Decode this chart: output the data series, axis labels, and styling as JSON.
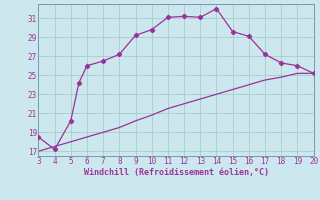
{
  "x_upper": [
    3,
    4,
    5,
    5.5,
    6,
    7,
    8,
    9,
    10,
    11,
    12,
    13,
    14,
    15,
    16,
    17,
    18,
    19,
    20
  ],
  "y_upper": [
    18.5,
    17.2,
    20.2,
    24.2,
    26.0,
    26.5,
    27.2,
    29.2,
    29.8,
    31.1,
    31.2,
    31.1,
    32.0,
    29.6,
    29.1,
    27.2,
    26.3,
    26.0,
    25.2
  ],
  "x_lower": [
    3,
    4,
    5,
    6,
    7,
    8,
    9,
    10,
    11,
    12,
    13,
    14,
    15,
    16,
    17,
    18,
    19,
    20
  ],
  "y_lower": [
    17.0,
    17.5,
    18.0,
    18.5,
    19.0,
    19.5,
    20.2,
    20.8,
    21.5,
    22.0,
    22.5,
    23.0,
    23.5,
    24.0,
    24.5,
    24.8,
    25.2,
    25.2
  ],
  "x_ticks": [
    3,
    4,
    5,
    6,
    7,
    8,
    9,
    10,
    11,
    12,
    13,
    14,
    15,
    16,
    17,
    18,
    19,
    20
  ],
  "y_ticks": [
    17,
    19,
    21,
    23,
    25,
    27,
    29,
    31
  ],
  "xlim": [
    3,
    20
  ],
  "ylim": [
    16.5,
    32.5
  ],
  "xlabel": "Windchill (Refroidissement éolien,°C)",
  "line_color": "#993399",
  "bg_color": "#cce8ee",
  "grid_color": "#aacccc",
  "spine_color": "#7799aa"
}
